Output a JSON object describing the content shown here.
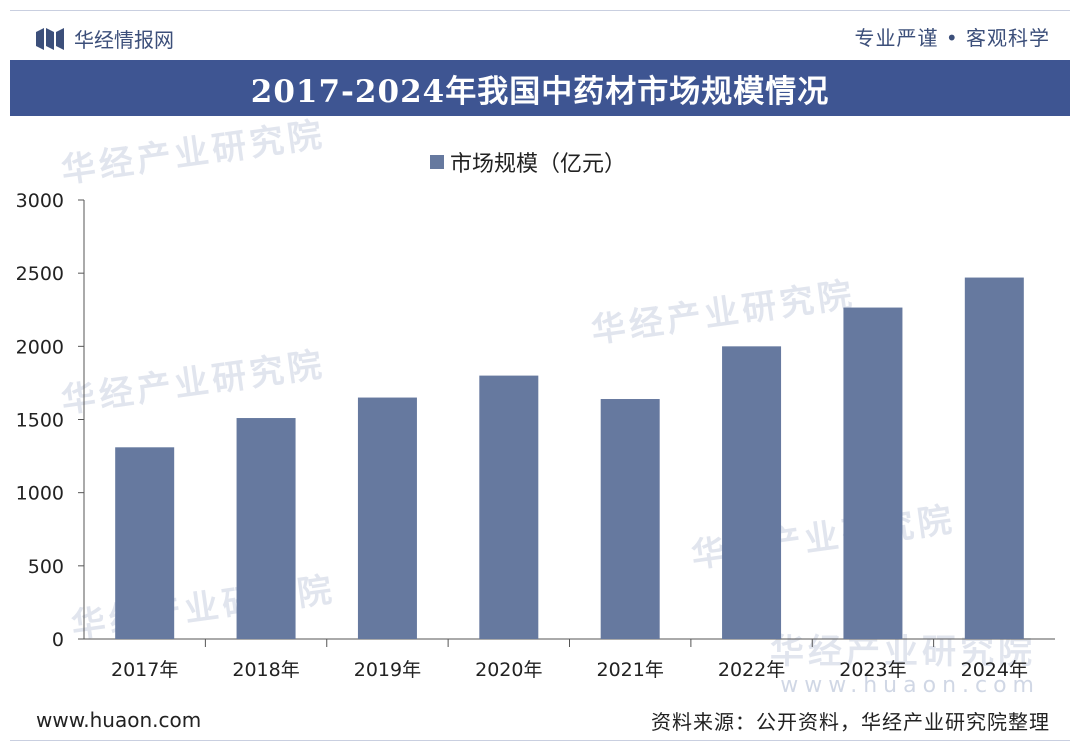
{
  "header": {
    "brand_name": "华经情报网",
    "slogan": "专业严谨 • 客观科学",
    "title": "2017-2024年我国中药材市场规模情况"
  },
  "legend": {
    "label": "市场规模（亿元）"
  },
  "watermarks": {
    "text": "华经产业研究院",
    "url": "www.huaon.com"
  },
  "footer": {
    "url": "www.huaon.com",
    "source": "资料来源：公开资料，华经产业研究院整理"
  },
  "colors": {
    "bar": "#66799f",
    "title_bg": "#3e5592",
    "brand": "#3c4f7a"
  },
  "chart_data": {
    "type": "bar",
    "categories": [
      "2017年",
      "2018年",
      "2019年",
      "2020年",
      "2021年",
      "2022年",
      "2023年",
      "2024年"
    ],
    "series": [
      {
        "name": "市场规模（亿元）",
        "values": [
          1310,
          1510,
          1650,
          1800,
          1640,
          2000,
          2265,
          2470
        ]
      }
    ],
    "ylim": [
      0,
      3000
    ],
    "yticks": [
      0,
      500,
      1000,
      1500,
      2000,
      2500,
      3000
    ],
    "legend_position": "top-center",
    "grid": false
  }
}
